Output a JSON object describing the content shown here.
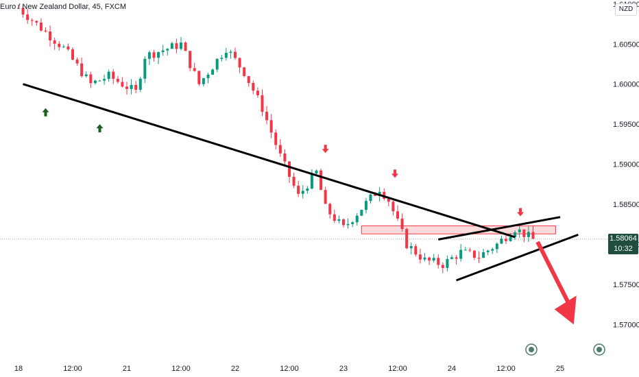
{
  "chart_title": "Euro / New Zealand Dollar, 45, FXCM",
  "currency_badge": "NZD",
  "last_price": {
    "value": "1.58064",
    "countdown": "10:32"
  },
  "colors": {
    "up": "#089981",
    "down": "#f23645",
    "trendline": "#000000",
    "resistance_zone": "rgba(242,54,69,0.18)",
    "arrow_red": "#f23645",
    "arrow_green": "#1b5e20",
    "price_label": "#1f4e3d"
  },
  "chart_data": {
    "type": "candlestick",
    "title": "Euro / New Zealand Dollar, 45, FXCM",
    "y_ticks": [
      "1.61000",
      "1.60500",
      "1.60000",
      "1.59500",
      "1.59000",
      "1.58500",
      "1.58000",
      "1.57500",
      "1.57000"
    ],
    "ylim": [
      1.566,
      1.6105
    ],
    "x_ticks": [
      "18",
      "12:00",
      "21",
      "12:00",
      "22",
      "12:00",
      "23",
      "12:00",
      "24",
      "12:00",
      "25"
    ],
    "price_path": [
      {
        "x": 0,
        "p": 1.6095
      },
      {
        "x": 5,
        "p": 1.6045
      },
      {
        "x": 8,
        "p": 1.6
      },
      {
        "x": 10,
        "p": 1.601
      },
      {
        "x": 13,
        "p": 1.599
      },
      {
        "x": 14,
        "p": 1.6035
      },
      {
        "x": 18,
        "p": 1.605
      },
      {
        "x": 20,
        "p": 1.6
      },
      {
        "x": 23,
        "p": 1.6045
      },
      {
        "x": 25,
        "p": 1.6015
      },
      {
        "x": 27,
        "p": 1.597
      },
      {
        "x": 29,
        "p": 1.591
      },
      {
        "x": 31,
        "p": 1.586
      },
      {
        "x": 33,
        "p": 1.589
      },
      {
        "x": 34,
        "p": 1.5845
      },
      {
        "x": 36,
        "p": 1.582
      },
      {
        "x": 38,
        "p": 1.5845
      },
      {
        "x": 40,
        "p": 1.587
      },
      {
        "x": 41,
        "p": 1.5855
      },
      {
        "x": 43,
        "p": 1.58
      },
      {
        "x": 45,
        "p": 1.578
      },
      {
        "x": 47,
        "p": 1.5775
      },
      {
        "x": 49,
        "p": 1.579
      },
      {
        "x": 51,
        "p": 1.5785
      },
      {
        "x": 53,
        "p": 1.58
      },
      {
        "x": 55,
        "p": 1.582
      },
      {
        "x": 57,
        "p": 1.5806
      }
    ],
    "trendlines": [
      {
        "x1": 0.5,
        "p1": 1.6,
        "x2": 55,
        "p2": 1.5809
      },
      {
        "x1": 46.5,
        "p1": 1.5806,
        "x2": 60,
        "p2": 1.5834
      },
      {
        "x1": 48.5,
        "p1": 1.5755,
        "x2": 62,
        "p2": 1.5812
      }
    ],
    "resistance_zone": {
      "x1": 38,
      "x2": 59.5,
      "p_top": 1.5823,
      "p_bottom": 1.5813
    },
    "markers_up": [
      {
        "x": 3,
        "p": 1.597
      },
      {
        "x": 9,
        "p": 1.595
      }
    ],
    "markers_down": [
      {
        "x": 34,
        "p": 1.5914
      },
      {
        "x": 41.7,
        "p": 1.5883
      },
      {
        "x": 55.6,
        "p": 1.5835
      }
    ],
    "projection_arrow": {
      "x1": 57.5,
      "p1": 1.5803,
      "x2": 61.5,
      "p2": 1.57
    }
  }
}
